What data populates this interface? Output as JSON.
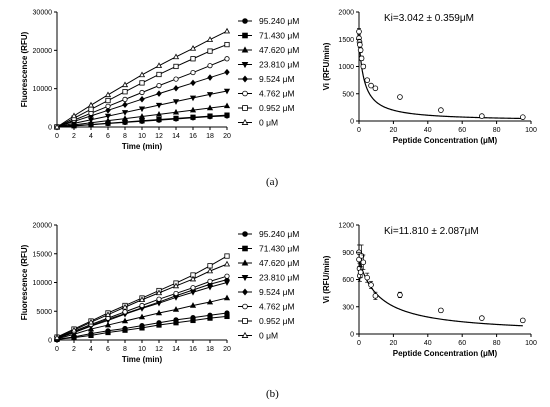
{
  "panels": {
    "a": "(a)",
    "b": "(b)"
  },
  "chart_data": [
    {
      "id": "a-time",
      "type": "line",
      "xlabel": "Time (min)",
      "ylabel": "Fluorescence (RFU)",
      "xlim": [
        0,
        20
      ],
      "ylim": [
        0,
        30000
      ],
      "xticks": [
        0,
        2,
        4,
        6,
        8,
        10,
        12,
        14,
        16,
        18,
        20
      ],
      "yticks": [
        0,
        10000,
        20000,
        30000
      ],
      "legend": "right",
      "x": [
        0,
        2,
        4,
        6,
        8,
        10,
        12,
        14,
        16,
        18,
        20
      ],
      "series": [
        {
          "name": "95.240 μM",
          "marker": "circle-filled",
          "values": [
            0,
            300,
            600,
            900,
            1200,
            1500,
            1800,
            2100,
            2400,
            2700,
            2900
          ]
        },
        {
          "name": "71.430 μM",
          "marker": "square-filled",
          "values": [
            0,
            320,
            650,
            980,
            1300,
            1620,
            1950,
            2250,
            2550,
            2850,
            3100
          ]
        },
        {
          "name": "47.620 μM",
          "marker": "triangle-up-filled",
          "values": [
            0,
            550,
            1100,
            1650,
            2200,
            2750,
            3300,
            3850,
            4400,
            4950,
            5500
          ]
        },
        {
          "name": "23.810 μM",
          "marker": "triangle-down-filled",
          "values": [
            0,
            950,
            1900,
            2850,
            3800,
            4750,
            5700,
            6650,
            7600,
            8500,
            9400
          ]
        },
        {
          "name": "9.524 μM",
          "marker": "diamond-filled",
          "values": [
            0,
            1450,
            2900,
            4350,
            5800,
            7250,
            8700,
            10100,
            11500,
            12900,
            14300
          ]
        },
        {
          "name": "4.762 μM",
          "marker": "circle-open",
          "values": [
            0,
            1800,
            3600,
            5400,
            7200,
            9000,
            10800,
            12500,
            14200,
            16000,
            17800
          ]
        },
        {
          "name": "0.952 μM",
          "marker": "square-open",
          "values": [
            0,
            2300,
            4600,
            6900,
            9200,
            11500,
            13700,
            15800,
            17800,
            19800,
            21500
          ]
        },
        {
          "name": "0 μM",
          "marker": "triangle-up-open",
          "values": [
            0,
            2900,
            5700,
            8400,
            11000,
            13600,
            16000,
            18300,
            20500,
            22800,
            25000
          ]
        }
      ]
    },
    {
      "id": "a-ki",
      "type": "scatter",
      "annotation": "Ki=3.042 ± 0.359μM",
      "xlabel": "Peptide Concentration (μM)",
      "ylabel": "Vi (RFU/min)",
      "xlim": [
        0,
        100
      ],
      "ylim": [
        0,
        2000
      ],
      "xticks": [
        0,
        20,
        40,
        60,
        80,
        100
      ],
      "yticks": [
        0,
        500,
        1000,
        1500,
        2000
      ],
      "fit": {
        "model": "v0*Ki/(Ki+x)",
        "v0": 1500,
        "Ki": 3.042
      },
      "points": [
        {
          "x": 0,
          "y": 1640,
          "err": 60
        },
        {
          "x": 0,
          "y": 1520,
          "err": 60
        },
        {
          "x": 0.3,
          "y": 1450,
          "err": 50
        },
        {
          "x": 0.5,
          "y": 1400,
          "err": 50
        },
        {
          "x": 0.95,
          "y": 1300,
          "err": 40
        },
        {
          "x": 1.5,
          "y": 1150,
          "err": 40
        },
        {
          "x": 2.5,
          "y": 1000,
          "err": 40
        },
        {
          "x": 4.76,
          "y": 750,
          "err": 30
        },
        {
          "x": 7,
          "y": 650,
          "err": 30
        },
        {
          "x": 9.52,
          "y": 600,
          "err": 30
        },
        {
          "x": 23.81,
          "y": 440,
          "err": 20
        },
        {
          "x": 47.62,
          "y": 200,
          "err": 15
        },
        {
          "x": 71.43,
          "y": 90,
          "err": 10
        },
        {
          "x": 95.24,
          "y": 70,
          "err": 10
        }
      ]
    },
    {
      "id": "b-time",
      "type": "line",
      "xlabel": "Time (min)",
      "ylabel": "Fluorescence (RFU)",
      "xlim": [
        0,
        20
      ],
      "ylim": [
        0,
        20000
      ],
      "xticks": [
        0,
        2,
        4,
        6,
        8,
        10,
        12,
        14,
        16,
        18,
        20
      ],
      "yticks": [
        0,
        5000,
        10000,
        15000,
        20000
      ],
      "legend": "right",
      "x": [
        0,
        2,
        4,
        6,
        8,
        10,
        12,
        14,
        16,
        18,
        20
      ],
      "series": [
        {
          "name": "95.240 μM",
          "marker": "circle-filled",
          "values": [
            100,
            550,
            1100,
            1600,
            2000,
            2500,
            3000,
            3500,
            3900,
            4300,
            4700
          ]
        },
        {
          "name": "71.430 μM",
          "marker": "square-filled",
          "values": [
            100,
            420,
            800,
            1300,
            1700,
            2100,
            2600,
            3000,
            3400,
            3800,
            4100
          ]
        },
        {
          "name": "47.620 μM",
          "marker": "triangle-up-filled",
          "values": [
            200,
            1000,
            1900,
            2600,
            3300,
            4000,
            4700,
            5300,
            6000,
            6600,
            7300
          ]
        },
        {
          "name": "23.810 μM",
          "marker": "triangle-down-filled",
          "values": [
            300,
            1300,
            2400,
            3400,
            4500,
            5500,
            6400,
            7400,
            8300,
            9200,
            10000
          ]
        },
        {
          "name": "9.524 μM",
          "marker": "diamond-filled",
          "values": [
            300,
            1300,
            2500,
            3600,
            4600,
            5600,
            6600,
            7700,
            8700,
            9700,
            10500
          ]
        },
        {
          "name": "4.762 μM",
          "marker": "circle-open",
          "values": [
            300,
            1500,
            2700,
            3800,
            4900,
            6000,
            7100,
            8100,
            9100,
            10200,
            11100
          ]
        },
        {
          "name": "0.952 μM",
          "marker": "square-open",
          "values": [
            500,
            1900,
            3300,
            4700,
            6000,
            7300,
            8600,
            9900,
            11300,
            12900,
            14600
          ]
        },
        {
          "name": "0 μM",
          "marker": "triangle-up-open",
          "values": [
            400,
            1700,
            3100,
            4400,
            5700,
            7000,
            8200,
            9400,
            10600,
            12000,
            13200
          ]
        }
      ]
    },
    {
      "id": "b-ki",
      "type": "scatter",
      "annotation": "Ki=11.810 ± 2.087μM",
      "xlabel": "Peptide Concentration (μM)",
      "ylabel": "Vi (RFU/min)",
      "xlim": [
        0,
        100
      ],
      "ylim": [
        0,
        1200
      ],
      "xticks": [
        0,
        20,
        40,
        60,
        80,
        100
      ],
      "yticks": [
        0,
        300,
        600,
        900,
        1200
      ],
      "fit": {
        "model": "v0*Ki/(Ki+x)",
        "v0": 820,
        "Ki": 11.81
      },
      "points": [
        {
          "x": 0,
          "y": 900,
          "err": 80
        },
        {
          "x": 0,
          "y": 820,
          "err": 80
        },
        {
          "x": 0.3,
          "y": 720,
          "err": 60
        },
        {
          "x": 0.5,
          "y": 640,
          "err": 60
        },
        {
          "x": 0.95,
          "y": 680,
          "err": 60
        },
        {
          "x": 1.5,
          "y": 860,
          "err": 120
        },
        {
          "x": 2.5,
          "y": 790,
          "err": 80
        },
        {
          "x": 4.76,
          "y": 620,
          "err": 50
        },
        {
          "x": 7,
          "y": 540,
          "err": 40
        },
        {
          "x": 9.52,
          "y": 420,
          "err": 40
        },
        {
          "x": 23.81,
          "y": 430,
          "err": 30
        },
        {
          "x": 47.62,
          "y": 260,
          "err": 20
        },
        {
          "x": 71.43,
          "y": 175,
          "err": 15
        },
        {
          "x": 95.24,
          "y": 150,
          "err": 15
        }
      ]
    }
  ]
}
